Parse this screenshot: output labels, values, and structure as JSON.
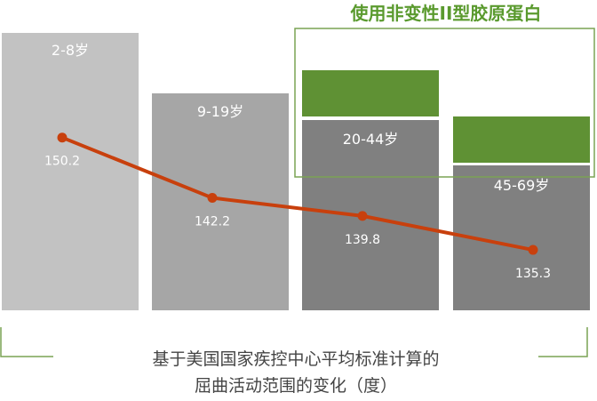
{
  "chart_data": {
    "type": "bar",
    "categories": [
      "2-8岁",
      "9-19岁",
      "20-44岁",
      "45-69岁"
    ],
    "values": [
      150.2,
      142.2,
      139.8,
      135.3
    ],
    "line_series": {
      "values": [
        150.2,
        142.2,
        139.8,
        135.3
      ]
    },
    "value_labels": [
      "150.2",
      "142.2",
      "139.8",
      "135.3"
    ],
    "collagen_segments": [
      false,
      false,
      true,
      true
    ],
    "annotation_box_label": "使用非变性II型胶原蛋白",
    "caption_line1": "基于美国国家疾控中心平均标准计算的",
    "caption_line2": "屈曲活动范围的变化（度）",
    "grid": false,
    "legend": "none",
    "colors": {
      "bar_light": "#c2c2c2",
      "bar_mid": "#a6a6a6",
      "bar_dark": "#808080",
      "collagen_green": "#5f9134",
      "line": "#c8400d",
      "frame_green": "#7aa354",
      "category_text": "#ffffff",
      "caption_text": "#444444",
      "title_green": "#5a9a2e"
    }
  }
}
